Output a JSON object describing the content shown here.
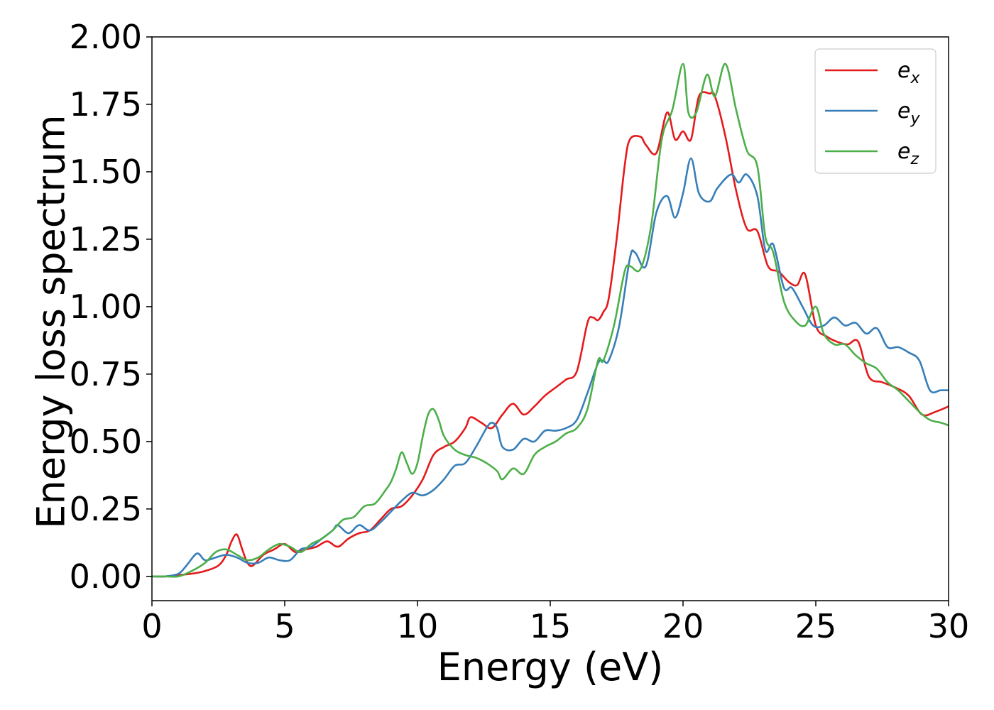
{
  "chart_data": {
    "type": "line",
    "title": "",
    "xlabel": "Energy (eV)",
    "ylabel": "Energy loss spectrum",
    "xlim": [
      0,
      30
    ],
    "ylim": [
      -0.09,
      2.0
    ],
    "xticks": [
      0,
      5,
      10,
      15,
      20,
      25,
      30
    ],
    "xtick_labels": [
      "0",
      "5",
      "10",
      "15",
      "20",
      "25",
      "30"
    ],
    "yticks": [
      0.0,
      0.25,
      0.5,
      0.75,
      1.0,
      1.25,
      1.5,
      1.75,
      2.0
    ],
    "ytick_labels": [
      "0.00",
      "0.25",
      "0.50",
      "0.75",
      "1.00",
      "1.25",
      "1.50",
      "1.75",
      "2.00"
    ],
    "grid": false,
    "legend_position": "top-right",
    "series": [
      {
        "name": "e",
        "subscript": "x",
        "color": "#e41a1c",
        "x": [
          0,
          0.5,
          1,
          1.5,
          2,
          2.5,
          2.8,
          3.0,
          3.2,
          3.4,
          3.6,
          3.8,
          4.2,
          4.6,
          5.0,
          5.4,
          5.8,
          6.2,
          6.6,
          7.0,
          7.4,
          7.8,
          8.2,
          8.6,
          9.0,
          9.4,
          9.8,
          10.2,
          10.6,
          11.0,
          11.4,
          11.8,
          12.0,
          12.4,
          12.8,
          13.2,
          13.6,
          14.0,
          14.4,
          14.8,
          15.2,
          15.6,
          16.0,
          16.4,
          16.6,
          16.8,
          17.0,
          17.2,
          17.5,
          17.8,
          18.0,
          18.4,
          18.6,
          19.0,
          19.4,
          19.7,
          20.0,
          20.3,
          20.6,
          21.0,
          21.2,
          21.6,
          22.0,
          22.4,
          22.8,
          23.2,
          23.6,
          24.0,
          24.3,
          24.6,
          25.0,
          25.4,
          25.8,
          26.2,
          26.6,
          27.0,
          27.5,
          28.0,
          28.5,
          29.0,
          29.5,
          30.0
        ],
        "y": [
          0,
          0.0,
          0.005,
          0.01,
          0.02,
          0.04,
          0.08,
          0.13,
          0.155,
          0.1,
          0.05,
          0.04,
          0.08,
          0.1,
          0.12,
          0.09,
          0.1,
          0.11,
          0.13,
          0.11,
          0.14,
          0.16,
          0.17,
          0.21,
          0.25,
          0.26,
          0.3,
          0.36,
          0.45,
          0.48,
          0.5,
          0.55,
          0.59,
          0.57,
          0.55,
          0.6,
          0.64,
          0.6,
          0.63,
          0.67,
          0.7,
          0.73,
          0.76,
          0.94,
          0.96,
          0.95,
          0.98,
          1.03,
          1.25,
          1.52,
          1.62,
          1.63,
          1.6,
          1.57,
          1.72,
          1.62,
          1.65,
          1.62,
          1.78,
          1.79,
          1.78,
          1.63,
          1.43,
          1.29,
          1.28,
          1.15,
          1.13,
          1.09,
          1.08,
          1.12,
          0.93,
          0.89,
          0.87,
          0.86,
          0.87,
          0.74,
          0.72,
          0.7,
          0.67,
          0.6,
          0.61,
          0.63
        ]
      },
      {
        "name": "e",
        "subscript": "y",
        "color": "#377eb8",
        "x": [
          0,
          0.5,
          1,
          1.3,
          1.7,
          2.0,
          2.4,
          2.8,
          3.2,
          3.6,
          4.0,
          4.4,
          4.8,
          5.2,
          5.6,
          6.0,
          6.4,
          6.8,
          7.0,
          7.4,
          7.8,
          8.2,
          8.6,
          9.0,
          9.4,
          9.8,
          10.2,
          10.6,
          11.0,
          11.4,
          11.8,
          12.2,
          12.6,
          12.8,
          13.0,
          13.2,
          13.6,
          14.0,
          14.4,
          14.8,
          15.2,
          15.6,
          16.0,
          16.4,
          16.8,
          17.0,
          17.2,
          17.6,
          18.0,
          18.2,
          18.6,
          19.0,
          19.4,
          19.7,
          20.0,
          20.3,
          20.6,
          21.0,
          21.3,
          21.8,
          22.1,
          22.4,
          22.8,
          23.1,
          23.4,
          23.8,
          24.1,
          24.5,
          24.9,
          25.3,
          25.7,
          26.1,
          26.5,
          26.9,
          27.3,
          27.7,
          28.1,
          28.5,
          28.9,
          29.3,
          29.7,
          30.0
        ],
        "y": [
          0,
          0.0,
          0.01,
          0.04,
          0.085,
          0.06,
          0.07,
          0.08,
          0.07,
          0.05,
          0.05,
          0.07,
          0.06,
          0.06,
          0.1,
          0.11,
          0.14,
          0.17,
          0.19,
          0.16,
          0.19,
          0.17,
          0.2,
          0.24,
          0.28,
          0.31,
          0.3,
          0.32,
          0.36,
          0.41,
          0.42,
          0.48,
          0.55,
          0.57,
          0.55,
          0.48,
          0.47,
          0.51,
          0.5,
          0.54,
          0.54,
          0.55,
          0.58,
          0.68,
          0.79,
          0.8,
          0.8,
          0.93,
          1.18,
          1.2,
          1.15,
          1.35,
          1.41,
          1.33,
          1.42,
          1.55,
          1.42,
          1.39,
          1.44,
          1.49,
          1.46,
          1.49,
          1.41,
          1.21,
          1.23,
          1.07,
          1.07,
          1.0,
          0.93,
          0.93,
          0.96,
          0.93,
          0.94,
          0.9,
          0.92,
          0.85,
          0.85,
          0.83,
          0.8,
          0.69,
          0.69,
          0.69
        ]
      },
      {
        "name": "e",
        "subscript": "z",
        "color": "#4daf4a",
        "x": [
          0,
          0.5,
          1,
          1.5,
          2.0,
          2.4,
          2.8,
          3.2,
          3.6,
          4.0,
          4.4,
          4.8,
          5.2,
          5.6,
          6.0,
          6.4,
          6.8,
          7.2,
          7.6,
          8.0,
          8.4,
          8.8,
          9.0,
          9.2,
          9.4,
          9.6,
          9.8,
          10.0,
          10.2,
          10.4,
          10.6,
          10.8,
          11.0,
          11.4,
          11.8,
          12.2,
          12.6,
          13.0,
          13.2,
          13.6,
          14.0,
          14.4,
          14.8,
          15.2,
          15.6,
          16.0,
          16.4,
          16.8,
          17.0,
          17.4,
          17.8,
          18.0,
          18.4,
          18.8,
          19.2,
          19.6,
          20.0,
          20.2,
          20.5,
          20.9,
          21.2,
          21.6,
          22.0,
          22.4,
          22.8,
          23.1,
          23.4,
          23.8,
          24.2,
          24.6,
          25.0,
          25.3,
          25.7,
          26.1,
          26.5,
          26.9,
          27.3,
          27.7,
          28.1,
          28.5,
          28.9,
          29.3,
          29.7,
          30.0
        ],
        "y": [
          0,
          0.0,
          0.0,
          0.02,
          0.05,
          0.09,
          0.1,
          0.08,
          0.06,
          0.07,
          0.1,
          0.12,
          0.11,
          0.09,
          0.12,
          0.14,
          0.17,
          0.21,
          0.22,
          0.26,
          0.27,
          0.32,
          0.35,
          0.4,
          0.46,
          0.42,
          0.38,
          0.42,
          0.52,
          0.6,
          0.62,
          0.58,
          0.52,
          0.47,
          0.45,
          0.44,
          0.42,
          0.39,
          0.36,
          0.4,
          0.38,
          0.45,
          0.48,
          0.5,
          0.53,
          0.55,
          0.62,
          0.8,
          0.8,
          0.93,
          1.13,
          1.15,
          1.14,
          1.3,
          1.62,
          1.73,
          1.9,
          1.72,
          1.72,
          1.86,
          1.78,
          1.9,
          1.73,
          1.58,
          1.52,
          1.26,
          1.2,
          1.02,
          0.95,
          0.93,
          1.0,
          0.9,
          0.86,
          0.86,
          0.82,
          0.79,
          0.77,
          0.72,
          0.69,
          0.65,
          0.61,
          0.58,
          0.57,
          0.56
        ]
      }
    ]
  }
}
